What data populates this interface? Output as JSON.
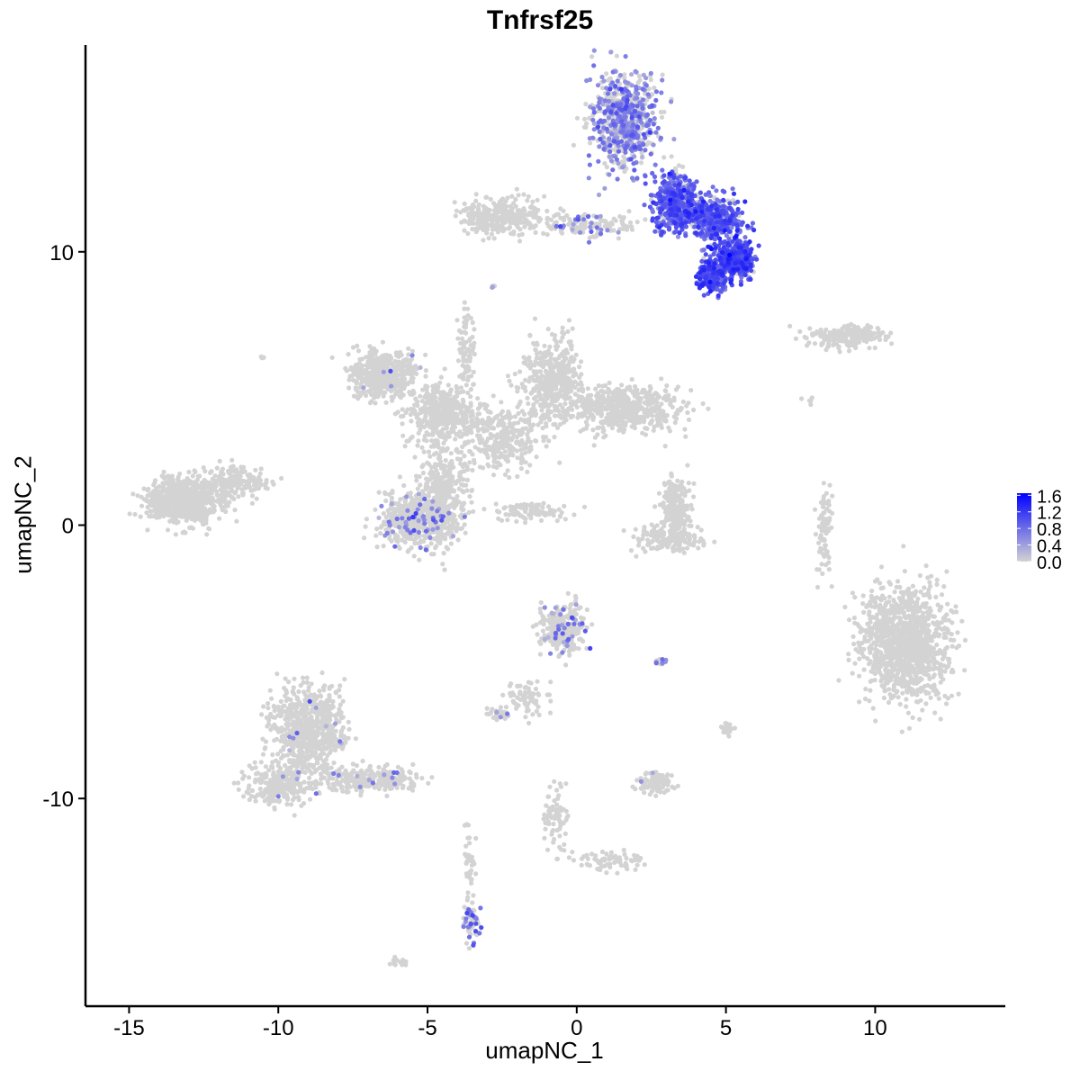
{
  "chart_data": {
    "type": "scatter",
    "title": "Tnfrsf25",
    "xlabel": "umapNC_1",
    "ylabel": "umapNC_2",
    "xlim": [
      -16.4,
      14.3
    ],
    "ylim": [
      -17.5,
      17.5
    ],
    "x_ticks": [
      -15,
      -10,
      -5,
      0,
      5,
      10
    ],
    "x_tick_labels": [
      "-15",
      "-10",
      "-5",
      "0",
      "5",
      "10"
    ],
    "y_ticks": [
      -10,
      0,
      10
    ],
    "y_tick_labels": [
      "-10",
      "0",
      "10"
    ],
    "grid": false,
    "legend": {
      "position": "right",
      "type": "colorbar",
      "min": 0.0,
      "max": 1.65,
      "ticks": [
        0.0,
        0.4,
        0.8,
        1.2,
        1.6
      ],
      "tick_labels": [
        "0.0",
        "0.4",
        "0.8",
        "1.2",
        "1.6"
      ],
      "low_color": "#D3D3D3",
      "high_color": "#0000FF"
    },
    "color_variable": "Tnfrsf25 expression",
    "clusters": [
      {
        "x": 1.6,
        "y": 14.8,
        "sx": 0.8,
        "sy": 1.2,
        "n": 700,
        "expr_frac": 0.55,
        "expr_mean": 0.6
      },
      {
        "x": 3.4,
        "y": 11.8,
        "sx": 0.55,
        "sy": 0.7,
        "n": 450,
        "expr_frac": 0.9,
        "expr_mean": 0.9
      },
      {
        "x": 4.7,
        "y": 11.2,
        "sx": 0.6,
        "sy": 0.6,
        "n": 350,
        "expr_frac": 0.85,
        "expr_mean": 0.9
      },
      {
        "x": 5.3,
        "y": 9.7,
        "sx": 0.45,
        "sy": 0.45,
        "n": 350,
        "expr_frac": 0.9,
        "expr_mean": 1.0
      },
      {
        "x": 4.5,
        "y": 9.1,
        "sx": 0.35,
        "sy": 0.4,
        "n": 200,
        "expr_frac": 0.9,
        "expr_mean": 1.0
      },
      {
        "x": -2.5,
        "y": 11.3,
        "sx": 0.9,
        "sy": 0.45,
        "n": 320,
        "expr_frac": 0.0,
        "expr_mean": 0.0
      },
      {
        "x": 0.5,
        "y": 11.0,
        "sx": 1.1,
        "sy": 0.3,
        "n": 140,
        "expr_frac": 0.2,
        "expr_mean": 0.6
      },
      {
        "x": 9.0,
        "y": 6.9,
        "sx": 1.0,
        "sy": 0.25,
        "n": 200,
        "expr_frac": 0.02,
        "expr_mean": 0.7
      },
      {
        "x": -6.5,
        "y": 5.5,
        "sx": 0.8,
        "sy": 0.6,
        "n": 450,
        "expr_frac": 0.02,
        "expr_mean": 0.6
      },
      {
        "x": -4.5,
        "y": 4.0,
        "sx": 0.9,
        "sy": 0.8,
        "n": 400,
        "expr_frac": 0.0,
        "expr_mean": 0.0
      },
      {
        "x": -3.7,
        "y": 6.3,
        "sx": 0.18,
        "sy": 1.2,
        "n": 90,
        "expr_frac": 0.0,
        "expr_mean": 0.0
      },
      {
        "x": -2.5,
        "y": 3.2,
        "sx": 0.9,
        "sy": 0.8,
        "n": 300,
        "expr_frac": 0.0,
        "expr_mean": 0.0
      },
      {
        "x": -0.8,
        "y": 5.2,
        "sx": 0.7,
        "sy": 1.1,
        "n": 450,
        "expr_frac": 0.0,
        "expr_mean": 0.0
      },
      {
        "x": 1.6,
        "y": 4.3,
        "sx": 1.3,
        "sy": 0.6,
        "n": 550,
        "expr_frac": 0.0,
        "expr_mean": 0.0
      },
      {
        "x": -4.5,
        "y": 1.2,
        "sx": 0.6,
        "sy": 1.3,
        "n": 350,
        "expr_frac": 0.0,
        "expr_mean": 0.0
      },
      {
        "x": -5.3,
        "y": 0.2,
        "sx": 0.9,
        "sy": 0.7,
        "n": 500,
        "expr_frac": 0.12,
        "expr_mean": 0.6
      },
      {
        "x": -1.5,
        "y": 0.5,
        "sx": 0.9,
        "sy": 0.25,
        "n": 90,
        "expr_frac": 0.0,
        "expr_mean": 0.0
      },
      {
        "x": -13.2,
        "y": 0.9,
        "sx": 0.9,
        "sy": 0.55,
        "n": 750,
        "expr_frac": 0.0,
        "expr_mean": 0.0
      },
      {
        "x": -11.5,
        "y": 1.6,
        "sx": 0.8,
        "sy": 0.4,
        "n": 200,
        "expr_frac": 0.0,
        "expr_mean": 0.0
      },
      {
        "x": 3.3,
        "y": 0.8,
        "sx": 0.35,
        "sy": 0.7,
        "n": 200,
        "expr_frac": 0.0,
        "expr_mean": 0.0
      },
      {
        "x": 3.2,
        "y": -0.5,
        "sx": 0.8,
        "sy": 0.35,
        "n": 180,
        "expr_frac": 0.0,
        "expr_mean": 0.0
      },
      {
        "x": 8.3,
        "y": -0.3,
        "sx": 0.2,
        "sy": 1.0,
        "n": 80,
        "expr_frac": 0.0,
        "expr_mean": 0.0
      },
      {
        "x": 11.0,
        "y": -4.3,
        "sx": 1.0,
        "sy": 1.4,
        "n": 1200,
        "expr_frac": 0.0,
        "expr_mean": 0.0
      },
      {
        "x": -0.5,
        "y": -3.8,
        "sx": 0.55,
        "sy": 0.6,
        "n": 280,
        "expr_frac": 0.12,
        "expr_mean": 0.7
      },
      {
        "x": -1.7,
        "y": -6.3,
        "sx": 0.5,
        "sy": 0.5,
        "n": 70,
        "expr_frac": 0.0,
        "expr_mean": 0.0
      },
      {
        "x": -2.6,
        "y": -6.9,
        "sx": 0.25,
        "sy": 0.15,
        "n": 40,
        "expr_frac": 0.1,
        "expr_mean": 0.7
      },
      {
        "x": 2.6,
        "y": -9.4,
        "sx": 0.4,
        "sy": 0.25,
        "n": 100,
        "expr_frac": 0.03,
        "expr_mean": 0.6
      },
      {
        "x": 2.8,
        "y": -5.0,
        "sx": 0.15,
        "sy": 0.06,
        "n": 15,
        "expr_frac": 0.5,
        "expr_mean": 0.6
      },
      {
        "x": 5.0,
        "y": -7.4,
        "sx": 0.15,
        "sy": 0.15,
        "n": 25,
        "expr_frac": 0.0,
        "expr_mean": 0.0
      },
      {
        "x": -9.0,
        "y": -7.5,
        "sx": 0.8,
        "sy": 1.1,
        "n": 700,
        "expr_frac": 0.02,
        "expr_mean": 0.6
      },
      {
        "x": -10.0,
        "y": -9.5,
        "sx": 0.8,
        "sy": 0.5,
        "n": 250,
        "expr_frac": 0.02,
        "expr_mean": 0.6
      },
      {
        "x": -7.0,
        "y": -9.3,
        "sx": 1.2,
        "sy": 0.35,
        "n": 250,
        "expr_frac": 0.04,
        "expr_mean": 0.6
      },
      {
        "x": -3.6,
        "y": -12.5,
        "sx": 0.12,
        "sy": 0.9,
        "n": 40,
        "expr_frac": 0.0,
        "expr_mean": 0.0
      },
      {
        "x": -3.5,
        "y": -14.5,
        "sx": 0.2,
        "sy": 0.5,
        "n": 70,
        "expr_frac": 0.4,
        "expr_mean": 0.8
      },
      {
        "x": -0.7,
        "y": -10.8,
        "sx": 0.3,
        "sy": 0.9,
        "n": 70,
        "expr_frac": 0.0,
        "expr_mean": 0.0
      },
      {
        "x": 1.0,
        "y": -12.3,
        "sx": 0.9,
        "sy": 0.25,
        "n": 70,
        "expr_frac": 0.0,
        "expr_mean": 0.0
      },
      {
        "x": -5.9,
        "y": -16.0,
        "sx": 0.2,
        "sy": 0.1,
        "n": 15,
        "expr_frac": 0.0,
        "expr_mean": 0.0
      },
      {
        "x": -10.5,
        "y": 6.1,
        "sx": 0.05,
        "sy": 0.05,
        "n": 4,
        "expr_frac": 0.0,
        "expr_mean": 0.0
      },
      {
        "x": -2.8,
        "y": 8.7,
        "sx": 0.05,
        "sy": 0.15,
        "n": 6,
        "expr_frac": 0.3,
        "expr_mean": 0.6
      },
      {
        "x": 7.8,
        "y": 4.6,
        "sx": 0.15,
        "sy": 0.15,
        "n": 6,
        "expr_frac": 0.0,
        "expr_mean": 0.0
      }
    ]
  }
}
